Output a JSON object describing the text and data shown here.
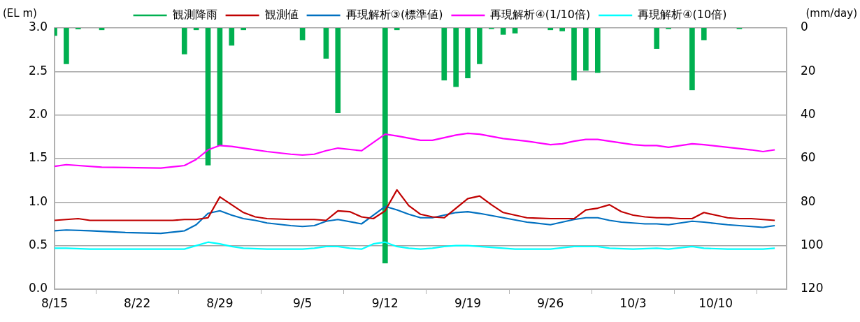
{
  "chart_data": {
    "type": "line",
    "ylabel": "(EL m)",
    "y2label": "(mm/day)",
    "xlim": [
      "--08-15",
      "--10-16"
    ],
    "xticks": [
      {
        "value": "--08-15",
        "label": "8/15"
      },
      {
        "value": "--08-22",
        "label": "8/22"
      },
      {
        "value": "--08-29",
        "label": "8/29"
      },
      {
        "value": "--09-05",
        "label": "9/5"
      },
      {
        "value": "--09-12",
        "label": "9/12"
      },
      {
        "value": "--09-19",
        "label": "9/19"
      },
      {
        "value": "--09-26",
        "label": "9/26"
      },
      {
        "value": "--10-03",
        "label": "10/3"
      },
      {
        "value": "--10-10",
        "label": "10/10"
      }
    ],
    "ylim": [
      0,
      3
    ],
    "yticks": [
      {
        "value": 0,
        "label": "0.0"
      },
      {
        "value": 0.5,
        "label": "0.5"
      },
      {
        "value": 1,
        "label": "1.0"
      },
      {
        "value": 1.5,
        "label": "1.5"
      },
      {
        "value": 2,
        "label": "2.0"
      },
      {
        "value": 2.5,
        "label": "2.5"
      },
      {
        "value": 3,
        "label": "3.0"
      }
    ],
    "y2lim": [
      120,
      0
    ],
    "y2ticks": [
      0,
      20,
      40,
      60,
      80,
      100,
      120
    ],
    "grid": "y",
    "legend": "top",
    "marker": "none",
    "line_style": "solid",
    "series": [
      {
        "name": "観測降雨",
        "type": "bar",
        "axis": "y2",
        "color": "#00b050",
        "x": [
          "--08-15",
          "--08-16",
          "--08-17",
          "--08-19",
          "--08-26",
          "--08-27",
          "--08-28",
          "--08-29",
          "--08-30",
          "--08-31",
          "--09-05",
          "--09-07",
          "--09-08",
          "--09-12",
          "--09-13",
          "--09-17",
          "--09-18",
          "--09-19",
          "--09-20",
          "--09-21",
          "--09-22",
          "--09-23",
          "--09-26",
          "--09-27",
          "--09-28",
          "--09-29",
          "--09-30",
          "--10-05",
          "--10-06",
          "--10-08",
          "--10-09",
          "--10-12"
        ],
        "values": [
          3.5,
          16.5,
          0.5,
          0.9,
          12,
          0.9,
          63,
          54,
          8,
          0.9,
          5.5,
          14,
          39,
          108,
          0.9,
          24,
          27,
          23,
          16.5,
          0.4,
          3,
          2.4,
          0.9,
          1.4,
          24,
          19.5,
          20.5,
          9.5,
          0.4,
          28.5,
          5.5,
          0.4
        ]
      },
      {
        "name": "観測値",
        "color": "#c00000",
        "x": [
          "--08-15",
          "--08-16",
          "--08-17",
          "--08-18",
          "--08-21",
          "--08-25",
          "--08-26",
          "--08-27",
          "--08-28",
          "--08-29",
          "--08-30",
          "--08-31",
          "--09-01",
          "--09-02",
          "--09-04",
          "--09-06",
          "--09-07",
          "--09-08",
          "--09-09",
          "--09-10",
          "--09-11",
          "--09-12",
          "--09-13",
          "--09-14",
          "--09-15",
          "--09-16",
          "--09-17",
          "--09-18",
          "--09-19",
          "--09-20",
          "--09-21",
          "--09-22",
          "--09-23",
          "--09-24",
          "--09-26",
          "--09-27",
          "--09-28",
          "--09-29",
          "--09-30",
          "--10-01",
          "--10-02",
          "--10-03",
          "--10-04",
          "--10-05",
          "--10-06",
          "--10-07",
          "--10-08",
          "--10-09",
          "--10-10",
          "--10-11",
          "--10-12",
          "--10-13",
          "--10-14",
          "--10-15"
        ],
        "values": [
          0.79,
          0.8,
          0.81,
          0.79,
          0.79,
          0.79,
          0.8,
          0.8,
          0.82,
          1.06,
          0.97,
          0.88,
          0.83,
          0.81,
          0.8,
          0.8,
          0.79,
          0.9,
          0.89,
          0.83,
          0.81,
          0.9,
          1.14,
          0.96,
          0.86,
          0.83,
          0.82,
          0.93,
          1.04,
          1.07,
          0.97,
          0.88,
          0.85,
          0.82,
          0.81,
          0.81,
          0.81,
          0.91,
          0.93,
          0.97,
          0.89,
          0.85,
          0.83,
          0.82,
          0.82,
          0.81,
          0.81,
          0.88,
          0.85,
          0.82,
          0.81,
          0.81,
          0.8,
          0.79
        ]
      },
      {
        "name": "再現解析③(標準値)",
        "color": "#0070c0",
        "x": [
          "--08-15",
          "--08-16",
          "--08-18",
          "--08-21",
          "--08-24",
          "--08-26",
          "--08-27",
          "--08-28",
          "--08-29",
          "--08-30",
          "--08-31",
          "--09-01",
          "--09-02",
          "--09-04",
          "--09-05",
          "--09-06",
          "--09-07",
          "--09-08",
          "--09-10",
          "--09-11",
          "--09-12",
          "--09-13",
          "--09-14",
          "--09-15",
          "--09-16",
          "--09-17",
          "--09-18",
          "--09-19",
          "--09-20",
          "--09-22",
          "--09-24",
          "--09-26",
          "--09-27",
          "--09-28",
          "--09-29",
          "--09-30",
          "--10-01",
          "--10-02",
          "--10-03",
          "--10-04",
          "--10-05",
          "--10-06",
          "--10-07",
          "--10-08",
          "--10-09",
          "--10-11",
          "--10-13",
          "--10-14",
          "--10-15"
        ],
        "values": [
          0.67,
          0.68,
          0.67,
          0.65,
          0.64,
          0.67,
          0.74,
          0.87,
          0.9,
          0.85,
          0.81,
          0.79,
          0.76,
          0.73,
          0.72,
          0.73,
          0.78,
          0.8,
          0.75,
          0.85,
          0.95,
          0.91,
          0.86,
          0.82,
          0.82,
          0.85,
          0.88,
          0.89,
          0.87,
          0.82,
          0.77,
          0.74,
          0.77,
          0.8,
          0.82,
          0.82,
          0.79,
          0.77,
          0.76,
          0.75,
          0.75,
          0.74,
          0.76,
          0.78,
          0.77,
          0.74,
          0.72,
          0.71,
          0.73
        ]
      },
      {
        "name": "再現解析④(1/10倍)",
        "color": "#ff00ff",
        "x": [
          "--08-15",
          "--08-16",
          "--08-19",
          "--08-24",
          "--08-26",
          "--08-27",
          "--08-28",
          "--08-29",
          "--08-30",
          "--08-31",
          "--09-02",
          "--09-04",
          "--09-05",
          "--09-06",
          "--09-07",
          "--09-08",
          "--09-10",
          "--09-12",
          "--09-13",
          "--09-15",
          "--09-16",
          "--09-17",
          "--09-18",
          "--09-19",
          "--09-20",
          "--09-22",
          "--09-24",
          "--09-26",
          "--09-27",
          "--09-28",
          "--09-29",
          "--09-30",
          "--10-02",
          "--10-03",
          "--10-04",
          "--10-05",
          "--10-06",
          "--10-07",
          "--10-08",
          "--10-09",
          "--10-11",
          "--10-13",
          "--10-14",
          "--10-15"
        ],
        "values": [
          1.41,
          1.43,
          1.4,
          1.39,
          1.42,
          1.49,
          1.6,
          1.65,
          1.64,
          1.62,
          1.58,
          1.55,
          1.54,
          1.55,
          1.59,
          1.62,
          1.59,
          1.78,
          1.76,
          1.71,
          1.71,
          1.74,
          1.77,
          1.79,
          1.78,
          1.73,
          1.7,
          1.66,
          1.67,
          1.7,
          1.72,
          1.72,
          1.68,
          1.66,
          1.65,
          1.65,
          1.63,
          1.65,
          1.67,
          1.66,
          1.63,
          1.6,
          1.58,
          1.6
        ]
      },
      {
        "name": "再現解析④(10倍)",
        "color": "#00ffff",
        "x": [
          "--08-15",
          "--08-16",
          "--08-18",
          "--08-21",
          "--08-24",
          "--08-26",
          "--08-27",
          "--08-28",
          "--08-29",
          "--08-30",
          "--08-31",
          "--09-02",
          "--09-05",
          "--09-06",
          "--09-07",
          "--09-08",
          "--09-09",
          "--09-10",
          "--09-11",
          "--09-12",
          "--09-13",
          "--09-14",
          "--09-15",
          "--09-16",
          "--09-17",
          "--09-18",
          "--09-19",
          "--09-21",
          "--09-23",
          "--09-26",
          "--09-28",
          "--09-29",
          "--09-30",
          "--10-01",
          "--10-03",
          "--10-05",
          "--10-06",
          "--10-08",
          "--10-09",
          "--10-11",
          "--10-14",
          "--10-15"
        ],
        "values": [
          0.47,
          0.47,
          0.46,
          0.46,
          0.46,
          0.46,
          0.5,
          0.54,
          0.52,
          0.49,
          0.47,
          0.46,
          0.46,
          0.47,
          0.49,
          0.49,
          0.47,
          0.46,
          0.52,
          0.54,
          0.49,
          0.47,
          0.46,
          0.47,
          0.49,
          0.5,
          0.5,
          0.48,
          0.46,
          0.46,
          0.49,
          0.49,
          0.49,
          0.47,
          0.46,
          0.47,
          0.46,
          0.49,
          0.47,
          0.46,
          0.46,
          0.47
        ]
      }
    ]
  }
}
